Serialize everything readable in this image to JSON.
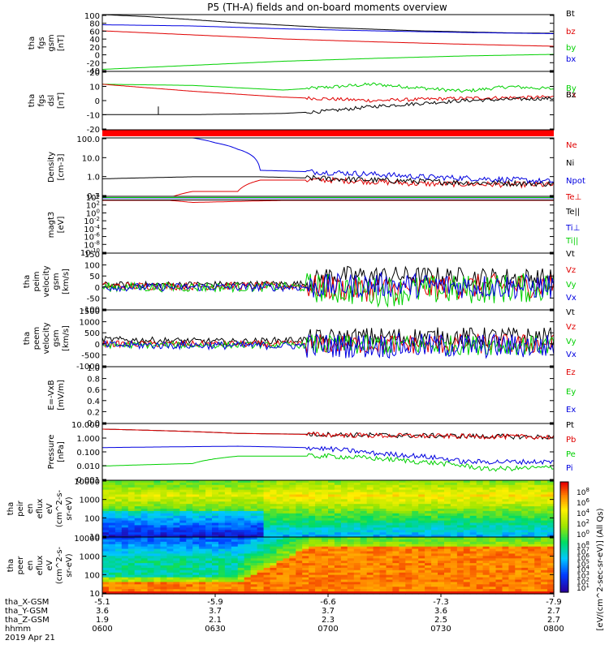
{
  "title": "P5 (TH-A) fields and on-board moments overview",
  "colors": {
    "black": "#000000",
    "red": "#e00000",
    "green": "#00d000",
    "blue": "#0000e0",
    "bar": "#ff0000"
  },
  "chart_data": [
    {
      "type": "line",
      "id": "fgs_gsm",
      "ylabel": [
        "tha",
        "fgs",
        "gsm",
        "[nT]"
      ],
      "yticks": [
        "100",
        "80",
        "60",
        "40",
        "20",
        "0",
        "-20",
        "-40"
      ],
      "ylim": [
        -40,
        100
      ],
      "series": [
        {
          "name": "Bt",
          "color": "black",
          "points": [
            [
              0,
              100
            ],
            [
              0.1,
              95
            ],
            [
              0.3,
              80
            ],
            [
              0.5,
              68
            ],
            [
              0.7,
              60
            ],
            [
              0.9,
              55
            ],
            [
              1,
              54
            ]
          ]
        },
        {
          "name": "bz",
          "color": "red",
          "points": [
            [
              0,
              60
            ],
            [
              0.2,
              50
            ],
            [
              0.4,
              40
            ],
            [
              0.6,
              33
            ],
            [
              0.8,
              27
            ],
            [
              1,
              22
            ]
          ]
        },
        {
          "name": "by",
          "color": "green",
          "points": [
            [
              0,
              -35
            ],
            [
              0.2,
              -25
            ],
            [
              0.4,
              -15
            ],
            [
              0.6,
              -8
            ],
            [
              0.8,
              -2
            ],
            [
              1,
              2
            ]
          ]
        },
        {
          "name": "bx",
          "color": "blue",
          "points": [
            [
              0,
              75
            ],
            [
              0.2,
              72
            ],
            [
              0.4,
              65
            ],
            [
              0.6,
              60
            ],
            [
              0.8,
              56
            ],
            [
              1,
              53
            ]
          ]
        }
      ]
    },
    {
      "type": "line",
      "id": "fgs_dsl",
      "ylabel": [
        "tha",
        "fgs",
        "dsl",
        "[nT]"
      ],
      "yticks": [
        "20",
        "10",
        "0",
        "-10",
        "-20"
      ],
      "ylim": [
        -25,
        25
      ],
      "series": [
        {
          "name": "By",
          "color": "green",
          "points": [
            [
              0,
              14
            ],
            [
              0.2,
              13
            ],
            [
              0.4,
              9
            ],
            [
              0.6,
              14
            ],
            [
              0.7,
              11
            ],
            [
              0.8,
              8
            ],
            [
              0.9,
              12
            ],
            [
              1,
              10
            ]
          ]
        },
        {
          "name": "Bx",
          "color": "red",
          "points": [
            [
              0,
              14
            ],
            [
              0.2,
              8
            ],
            [
              0.4,
              3
            ],
            [
              0.6,
              0
            ],
            [
              0.8,
              2
            ],
            [
              1,
              3
            ]
          ]
        },
        {
          "name": "Bz",
          "color": "black",
          "points": [
            [
              0,
              -12
            ],
            [
              0.2,
              -12
            ],
            [
              0.4,
              -11
            ],
            [
              0.5,
              -9
            ],
            [
              0.6,
              -5
            ],
            [
              0.8,
              0
            ],
            [
              0.9,
              1
            ],
            [
              1,
              2
            ]
          ]
        }
      ]
    },
    {
      "type": "line",
      "id": "density",
      "ylabel": [
        "Density",
        "[cm-3]"
      ],
      "yticks": [
        "100.0",
        "10.0",
        "1.0",
        "0.1"
      ],
      "ylim": [
        0.05,
        200
      ],
      "log": true,
      "series": [
        {
          "name": "Ne",
          "color": "red",
          "points": [
            [
              0,
              0.04
            ],
            [
              0.15,
              0.04
            ],
            [
              0.2,
              0.1
            ],
            [
              0.3,
              0.1
            ],
            [
              0.35,
              0.5
            ],
            [
              0.5,
              0.5
            ],
            [
              0.7,
              0.3
            ],
            [
              1,
              0.25
            ]
          ]
        },
        {
          "name": "Ni",
          "color": "black",
          "points": [
            [
              0,
              0.6
            ],
            [
              0.2,
              0.8
            ],
            [
              0.35,
              0.8
            ],
            [
              0.6,
              0.5
            ],
            [
              0.8,
              0.35
            ],
            [
              1,
              0.3
            ]
          ]
        },
        {
          "name": "Npot",
          "color": "blue",
          "points": [
            [
              0.2,
              200
            ],
            [
              0.25,
              100
            ],
            [
              0.3,
              40
            ],
            [
              0.35,
              2
            ],
            [
              0.5,
              1.5
            ],
            [
              0.7,
              0.8
            ],
            [
              1,
              0.4
            ]
          ]
        }
      ]
    },
    {
      "type": "line",
      "id": "magt3",
      "ylabel": [
        "magt3",
        "[eV]"
      ],
      "yticks": [
        "10^4",
        "10^2",
        "10^0",
        "10^-2",
        "10^-4",
        "10^-6",
        "10^-8",
        "10^-10"
      ],
      "ylim": [
        -10,
        4
      ],
      "series": [
        {
          "name": "Te⊥",
          "color": "red",
          "points": [
            [
              0,
              3
            ],
            [
              0.15,
              3
            ],
            [
              0.2,
              2.5
            ],
            [
              0.4,
              3
            ],
            [
              1,
              3
            ]
          ]
        },
        {
          "name": "Te||",
          "color": "black",
          "points": [
            [
              0,
              3.1
            ],
            [
              1,
              3.1
            ]
          ]
        },
        {
          "name": "Ti⊥",
          "color": "blue",
          "points": [
            [
              0,
              3.6
            ],
            [
              1,
              3.6
            ]
          ]
        },
        {
          "name": "Ti||",
          "color": "green",
          "points": [
            [
              0,
              3.7
            ],
            [
              1,
              3.7
            ]
          ]
        }
      ]
    },
    {
      "type": "line",
      "id": "peim_velocity",
      "ylabel": [
        "tha",
        "peim",
        "velocity",
        "gsm",
        "[km/s]"
      ],
      "yticks": [
        "150",
        "100",
        "50",
        "0",
        "-50",
        "-100"
      ],
      "ylim": [
        -100,
        150
      ],
      "noisy": true,
      "series": [
        {
          "name": "Vt",
          "color": "black",
          "base": [
            [
              0,
              10
            ],
            [
              0.45,
              15
            ],
            [
              0.5,
              50
            ],
            [
              0.6,
              50
            ],
            [
              1,
              40
            ]
          ],
          "amp": 20
        },
        {
          "name": "Vz",
          "color": "red",
          "base": [
            [
              0,
              5
            ],
            [
              0.45,
              5
            ],
            [
              0.55,
              -10
            ],
            [
              1,
              10
            ]
          ],
          "amp": 25
        },
        {
          "name": "Vy",
          "color": "green",
          "base": [
            [
              0,
              0
            ],
            [
              0.45,
              0
            ],
            [
              0.6,
              -20
            ],
            [
              1,
              0
            ]
          ],
          "amp": 30
        },
        {
          "name": "Vx",
          "color": "blue",
          "base": [
            [
              0,
              0
            ],
            [
              0.45,
              0
            ],
            [
              0.6,
              10
            ],
            [
              1,
              0
            ]
          ],
          "amp": 25
        }
      ]
    },
    {
      "type": "line",
      "id": "peem_velocity",
      "ylabel": [
        "tha",
        "peem",
        "velocity",
        "gsm",
        "[km/s]"
      ],
      "yticks": [
        "1500",
        "1000",
        "500",
        "0",
        "-500",
        "-1000"
      ],
      "ylim": [
        -1000,
        1500
      ],
      "noisy": true,
      "series": [
        {
          "name": "Vt",
          "color": "black",
          "base": [
            [
              0,
              200
            ],
            [
              0.3,
              100
            ],
            [
              0.6,
              300
            ],
            [
              1,
              300
            ]
          ],
          "amp": 200
        },
        {
          "name": "Vz",
          "color": "red",
          "base": [
            [
              0,
              0
            ],
            [
              1,
              0
            ]
          ],
          "amp": 200
        },
        {
          "name": "Vy",
          "color": "green",
          "base": [
            [
              0,
              -50
            ],
            [
              1,
              -50
            ]
          ],
          "amp": 200
        },
        {
          "name": "Vx",
          "color": "blue",
          "base": [
            [
              0,
              -50
            ],
            [
              1,
              -100
            ]
          ],
          "amp": 250
        }
      ]
    },
    {
      "type": "line",
      "id": "efield",
      "ylabel": [
        "E=-VxB",
        "[mV/m]"
      ],
      "yticks": [
        "1.0",
        "0.8",
        "0.6",
        "0.4",
        "0.2",
        "0.0"
      ],
      "ylim": [
        0,
        1
      ],
      "series": [
        {
          "name": "Ez",
          "color": "red",
          "points": []
        },
        {
          "name": "Ey",
          "color": "green",
          "points": []
        },
        {
          "name": "Ex",
          "color": "blue",
          "points": []
        }
      ]
    },
    {
      "type": "line",
      "id": "pressure",
      "ylabel": [
        "Pressure",
        "[nPa]"
      ],
      "yticks": [
        "10.000",
        "1.000",
        "0.100",
        "0.010",
        "0.001"
      ],
      "ylim": [
        0.001,
        10
      ],
      "log": true,
      "series": [
        {
          "name": "Pt",
          "color": "black",
          "points": [
            [
              0,
              4
            ],
            [
              0.3,
              2
            ],
            [
              0.6,
              1.5
            ],
            [
              1,
              1.1
            ]
          ]
        },
        {
          "name": "Pb",
          "color": "red",
          "points": [
            [
              0,
              4
            ],
            [
              0.3,
              2
            ],
            [
              0.6,
              1.4
            ],
            [
              1,
              1.1
            ]
          ]
        },
        {
          "name": "Pe",
          "color": "green",
          "points": [
            [
              0,
              0.01
            ],
            [
              0.2,
              0.015
            ],
            [
              0.3,
              0.05
            ],
            [
              0.5,
              0.05
            ],
            [
              0.7,
              0.02
            ],
            [
              0.85,
              0.006
            ],
            [
              1,
              0.008
            ]
          ]
        },
        {
          "name": "Pi",
          "color": "blue",
          "points": [
            [
              0,
              0.2
            ],
            [
              0.3,
              0.25
            ],
            [
              0.45,
              0.2
            ],
            [
              0.6,
              0.08
            ],
            [
              0.8,
              0.02
            ],
            [
              1,
              0.02
            ]
          ]
        }
      ]
    },
    {
      "type": "heatmap",
      "id": "peir",
      "ylabel": [
        "tha",
        "peir",
        "en",
        "eflux",
        "eV",
        "(cm^2-s-",
        "sr-eV)"
      ],
      "yticks": [
        "10000",
        "1000",
        "100",
        "10"
      ]
    },
    {
      "type": "heatmap",
      "id": "peer",
      "ylabel": [
        "tha",
        "peer",
        "en",
        "eflux",
        "eV",
        "(cm^2-s-",
        "sr-eV)"
      ],
      "yticks": [
        "10000",
        "1000",
        "100",
        "10"
      ]
    }
  ],
  "colorbar": {
    "label": "[eV/(cm^2-sec-sr-eV)] (All Qs)",
    "ticks_upper": [
      "10^8",
      "10^6",
      "10^4",
      "10^2",
      "10^0"
    ],
    "ticks_lower": [
      "10^8",
      "10^7",
      "10^6",
      "10^5",
      "10^4",
      "10^3",
      "10^2",
      "10^1"
    ]
  },
  "xaxis": {
    "row_labels": [
      "tha_X-GSM",
      "tha_Y-GSM",
      "tha_Z-GSM",
      "hhmm",
      "2019 Apr 21"
    ],
    "ticks": [
      {
        "x": "-5.1",
        "y": "3.6",
        "z": "1.9",
        "t": "0600"
      },
      {
        "x": "-5.9",
        "y": "3.7",
        "z": "2.1",
        "t": "0630"
      },
      {
        "x": "-6.6",
        "y": "3.7",
        "z": "2.3",
        "t": "0700"
      },
      {
        "x": "-7.3",
        "y": "3.6",
        "z": "2.5",
        "t": "0730"
      },
      {
        "x": "-7.9",
        "y": "2.7",
        "z": "2.7",
        "t": "0800"
      }
    ]
  }
}
